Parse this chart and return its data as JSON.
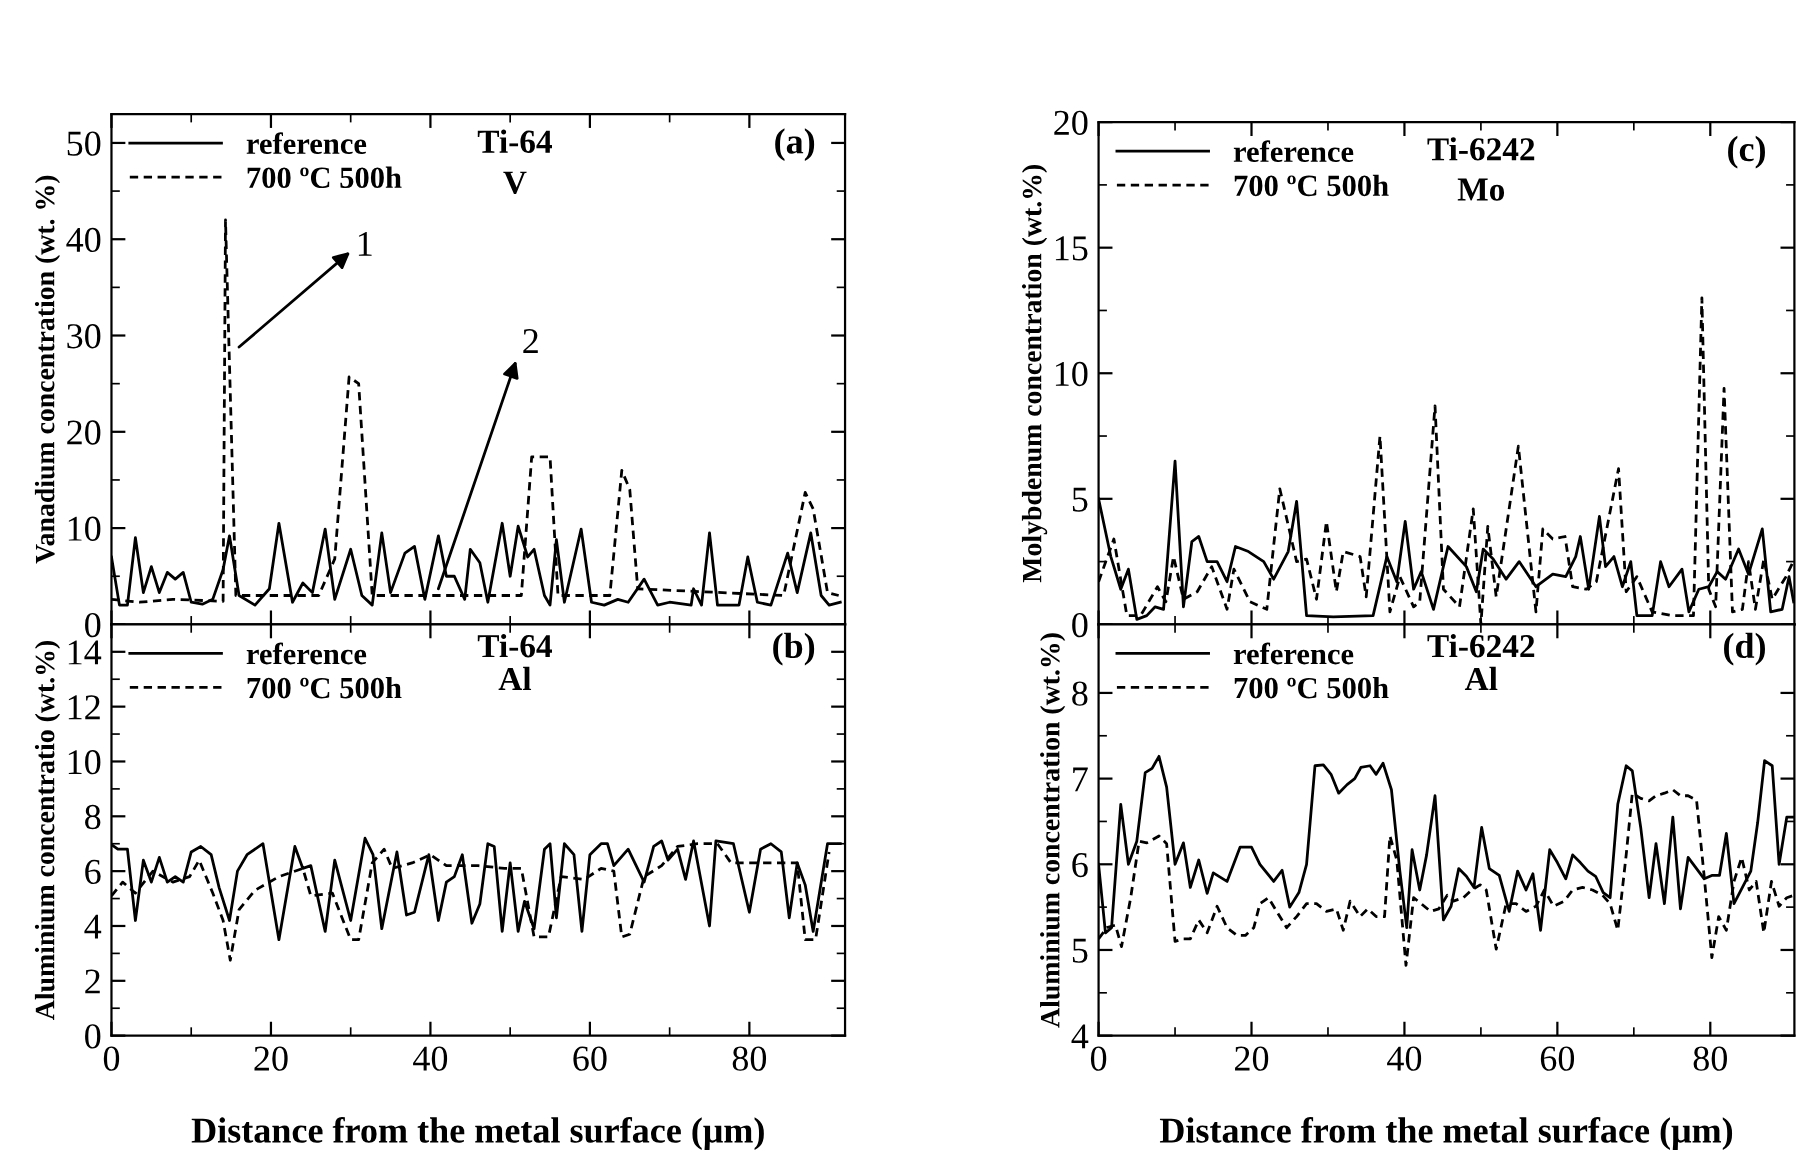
{
  "chart_data": [
    {
      "type": "line",
      "ylabel": "Vanadium concentration (wt. %)",
      "xlim": [
        0,
        92
      ],
      "ylim": [
        0,
        53
      ],
      "xticks": [
        0,
        20,
        40,
        60,
        80
      ],
      "yticks": [
        0,
        10,
        20,
        30,
        40,
        50
      ],
      "tick_labels": "y",
      "legend": "top left",
      "grid": false,
      "annotations": [
        "Ti-64",
        "V",
        "(a)",
        {
          "text": "1",
          "x": 16,
          "y": 28.8
        },
        {
          "text": "2",
          "x": 41,
          "y": 3.7
        }
      ],
      "series": [
        {
          "name": "reference",
          "color": "#000000",
          "line_style": "solid",
          "x": [
            0,
            1,
            2,
            3,
            4,
            5,
            6,
            7,
            8,
            9,
            10,
            11.4,
            12.7,
            14,
            14.8,
            16,
            18,
            19.8,
            21,
            22.7,
            24,
            25.2,
            26.8,
            28,
            30,
            31.4,
            32.7,
            33.9,
            35,
            36.8,
            38,
            39.3,
            41,
            42,
            43,
            44.3,
            45,
            46.2,
            47.2,
            49,
            50,
            51,
            52.2,
            53,
            54.3,
            55,
            55.8,
            56.8,
            58.9,
            60.2,
            61.8,
            63.5,
            64.8,
            66.8,
            68.5,
            70,
            72.7,
            73,
            74,
            75,
            76,
            78.7,
            79.8,
            81,
            82.7,
            84.8,
            86,
            87.7,
            89,
            90,
            91.4
          ],
          "values": [
            7,
            2,
            2,
            9,
            3.3,
            6,
            3.3,
            5.4,
            4.7,
            5.4,
            2.3,
            2.1,
            2.6,
            5.7,
            9.2,
            3,
            2,
            3.7,
            10.5,
            2.3,
            4.3,
            3.3,
            9.9,
            2.6,
            7.8,
            3,
            2,
            9.5,
            3.3,
            7.4,
            8.1,
            2.6,
            9.2,
            5,
            5,
            2.6,
            7.8,
            6.4,
            2.3,
            10.5,
            5,
            10.2,
            7,
            7.8,
            3,
            2,
            8.8,
            2.3,
            9.9,
            2.3,
            2,
            2.6,
            2.3,
            4.7,
            2,
            2.3,
            2,
            3.7,
            2,
            9.5,
            2,
            2,
            7,
            2.3,
            2,
            7.4,
            3.3,
            9.5,
            3,
            2,
            2.3
          ]
        },
        {
          "name": "700 ºC 500h",
          "color": "#000000",
          "line_style": "dashed",
          "x": [
            0,
            3.5,
            7.7,
            14,
            14.3,
            15.6,
            26,
            28,
            29.8,
            31,
            32.7,
            51.4,
            52.7,
            55,
            56,
            62.5,
            64,
            65,
            66,
            84.3,
            87,
            88,
            89.8,
            91.2
          ],
          "values": [
            2.6,
            2.3,
            2.6,
            2.4,
            42,
            3,
            3,
            6.8,
            25.7,
            25,
            3,
            3,
            17.4,
            17.4,
            3,
            3,
            16,
            14,
            3.7,
            3,
            13.7,
            12,
            3.3,
            3
          ]
        }
      ]
    },
    {
      "type": "line",
      "ylabel": "Molybdenum concentration (wt.%)",
      "xlim": [
        0,
        91
      ],
      "ylim": [
        0,
        20
      ],
      "xticks": [
        0,
        20,
        40,
        60,
        80
      ],
      "yticks": [
        0,
        5,
        10,
        15,
        20
      ],
      "tick_labels": "y",
      "legend": "top left",
      "grid": false,
      "annotations": [
        "Ti-6242",
        "Mo",
        "(c)"
      ],
      "series": [
        {
          "name": "reference",
          "color": "#000000",
          "line_style": "solid",
          "x": [
            0,
            1.6,
            2.9,
            3.9,
            5,
            6.3,
            7.4,
            8.5,
            10,
            11.1,
            12.2,
            13.1,
            14.2,
            15.5,
            16.8,
            17.9,
            19.6,
            21.6,
            22.9,
            24.8,
            25.9,
            27.2,
            30.7,
            35.9,
            37.7,
            39,
            40.1,
            41.2,
            42.2,
            43.8,
            45.7,
            48.1,
            49.4,
            50.3,
            51.6,
            53.3,
            55,
            57.2,
            59.4,
            61.1,
            62.4,
            63,
            64.1,
            65.5,
            66.3,
            67.4,
            68.5,
            69.6,
            70.4,
            72.4,
            73.5,
            74.6,
            76.3,
            77.2,
            78.5,
            79.8,
            80.9,
            82,
            83.7,
            85,
            86.8,
            87.9,
            89.4,
            90.3,
            90.9
          ],
          "values": [
            5,
            2.7,
            1.4,
            2.2,
            0.2,
            0.35,
            0.7,
            0.6,
            6.5,
            0.7,
            3.3,
            3.5,
            2.5,
            2.5,
            1.7,
            3.1,
            2.9,
            2.5,
            1.8,
            2.9,
            4.9,
            0.35,
            0.3,
            0.35,
            2.7,
            1.7,
            4.1,
            1.4,
            2.1,
            0.6,
            3.1,
            2.3,
            1.3,
            3,
            2.6,
            1.8,
            2.5,
            1.5,
            2,
            1.9,
            2.7,
            3.5,
            1.4,
            4.3,
            2.3,
            2.7,
            1.5,
            2.5,
            0.35,
            0.35,
            2.5,
            1.5,
            2.2,
            0.5,
            1.4,
            1.5,
            2.1,
            1.8,
            3,
            2,
            3.8,
            0.5,
            0.6,
            1.9,
            0.9
          ]
        },
        {
          "name": "700 ºC 500h",
          "color": "#000000",
          "line_style": "dashed",
          "x": [
            0,
            2,
            3.7,
            5.5,
            7.7,
            8.8,
            9.8,
            11.1,
            12.9,
            14.8,
            16.8,
            17.7,
            19.8,
            22,
            23.7,
            25.9,
            27.2,
            28.5,
            29.8,
            31.1,
            32,
            34.2,
            35,
            36.8,
            38.1,
            39.4,
            41.2,
            42,
            44,
            45.1,
            47.2,
            49,
            50,
            50.9,
            52,
            54.9,
            57.2,
            58.1,
            59.4,
            61,
            62,
            63.8,
            65.1,
            68,
            69,
            70.4,
            72.4,
            75,
            77.8,
            78.9,
            79.8,
            80.7,
            81.8,
            82.9,
            84.2,
            85,
            85.9,
            87,
            88.1,
            89.9,
            91
          ],
          "values": [
            1.7,
            3.4,
            0.35,
            0.35,
            1.5,
            0.9,
            2.7,
            1,
            1.3,
            2.3,
            0.6,
            2.2,
            0.9,
            0.6,
            5.4,
            2.5,
            2.6,
            1,
            4.1,
            1.3,
            2.9,
            2.7,
            1.1,
            7.5,
            0.5,
            1.9,
            0.7,
            0.9,
            8.7,
            1.4,
            0.7,
            4.6,
            0,
            3.9,
            1.1,
            7.1,
            0.5,
            3.8,
            3.4,
            3.5,
            1.5,
            1.4,
            1.7,
            6.2,
            1.3,
            1.9,
            0.5,
            0.35,
            0.35,
            13,
            1.4,
            0.7,
            9.4,
            0.5,
            0.6,
            2.5,
            0.6,
            2.6,
            1,
            1.9,
            2.6
          ]
        }
      ]
    },
    {
      "type": "line",
      "ylabel": "Aluminium concentratio (wt.%)",
      "xlabel": "Distance from the metal surface (μm)",
      "xlim": [
        0,
        92
      ],
      "ylim": [
        0,
        15
      ],
      "xticks": [
        0,
        20,
        40,
        60,
        80
      ],
      "yticks": [
        0,
        2,
        4,
        6,
        8,
        10,
        12,
        14
      ],
      "legend": "top left",
      "grid": false,
      "annotations": [
        "Ti-64",
        "Al",
        "(b)"
      ],
      "series": [
        {
          "name": "reference",
          "color": "#000000",
          "line_style": "solid",
          "x": [
            0,
            0.8,
            2,
            3,
            4,
            5,
            6,
            7,
            8,
            9,
            10,
            11.2,
            12.5,
            13.5,
            14.8,
            15.8,
            17,
            19,
            21,
            23,
            24,
            25,
            26.8,
            28,
            30,
            31.8,
            32.8,
            33.9,
            35.8,
            37,
            38,
            39.8,
            41,
            42,
            43,
            44,
            45.2,
            46.2,
            47.2,
            48,
            49,
            50,
            51,
            51.8,
            53,
            54.3,
            55,
            55.8,
            56.8,
            58,
            59,
            60,
            61.4,
            62.2,
            63,
            64.8,
            66.8,
            68,
            69,
            69.8,
            71,
            72,
            73,
            75,
            75.8,
            78,
            80,
            81.4,
            82.7,
            84,
            85,
            86,
            87,
            88,
            89.8,
            91.4
          ],
          "values": [
            6.97,
            6.8,
            6.8,
            4.2,
            6.4,
            5.6,
            6.5,
            5.6,
            5.8,
            5.6,
            6.7,
            6.9,
            6.6,
            5.4,
            4.2,
            6,
            6.6,
            7,
            3.5,
            6.9,
            6.1,
            6.2,
            3.8,
            6.4,
            4.2,
            7.2,
            6.6,
            3.9,
            6.7,
            4.4,
            4.5,
            6.6,
            4.2,
            5.6,
            5.8,
            6.6,
            4.1,
            4.8,
            7,
            6.9,
            3.8,
            6.3,
            3.8,
            4.9,
            3.9,
            6.8,
            7,
            4.3,
            7,
            6.6,
            3.8,
            6.6,
            7,
            7,
            6.2,
            6.8,
            5.6,
            6.9,
            7.1,
            6.4,
            6.8,
            5.7,
            7.1,
            4,
            7.1,
            7,
            4.5,
            6.8,
            7,
            6.7,
            4.3,
            6.3,
            5.5,
            3.8,
            7,
            7
          ]
        },
        {
          "name": "700 ºC 500h",
          "color": "#000000",
          "line_style": "dashed",
          "x": [
            0,
            1.4,
            3,
            5.2,
            7.7,
            9.8,
            11,
            12.7,
            14,
            14.9,
            16,
            18,
            21,
            24,
            25,
            27.7,
            30,
            31,
            32.7,
            34.2,
            35.2,
            37.7,
            40,
            42,
            46,
            49.3,
            51.4,
            53,
            54.8,
            56.4,
            59.3,
            61.4,
            63,
            64,
            65,
            66.8,
            69,
            71,
            73.5,
            76,
            77.7,
            80,
            82.7,
            86,
            87,
            88.3,
            90
          ],
          "values": [
            5.1,
            5.6,
            5.2,
            6,
            5.6,
            5.8,
            6.4,
            5.2,
            4.2,
            2.75,
            4.6,
            5.3,
            5.8,
            6.1,
            5.1,
            5.2,
            3.5,
            3.5,
            6.3,
            6.8,
            6.1,
            6.3,
            6.6,
            6.2,
            6.2,
            6.1,
            6.1,
            3.6,
            3.6,
            5.8,
            5.7,
            6.1,
            6,
            3.6,
            3.7,
            5.8,
            6.2,
            6.9,
            7,
            7,
            6.3,
            6.3,
            6.3,
            6.3,
            3.5,
            3.5,
            6.7
          ]
        }
      ]
    },
    {
      "type": "line",
      "ylabel": "Aluminium concentration (wt.%)",
      "xlabel": "Distance from the metal surface (μm)",
      "xlim": [
        0,
        91
      ],
      "ylim": [
        4,
        8.8
      ],
      "xticks": [
        0,
        20,
        40,
        60,
        80
      ],
      "yticks": [
        4,
        5,
        6,
        7,
        8
      ],
      "legend": "top left",
      "grid": false,
      "annotations": [
        "Ti-6242",
        "Al",
        "(d)"
      ],
      "series": [
        {
          "name": "reference",
          "color": "#000000",
          "line_style": "solid",
          "x": [
            0,
            0.9,
            1.7,
            2.9,
            3.9,
            5,
            6.1,
            7,
            7.9,
            8.9,
            10,
            11.1,
            12,
            13.1,
            14.2,
            15,
            16.8,
            18.5,
            20,
            21.1,
            22.9,
            24,
            25,
            26.2,
            27.2,
            28.3,
            29.4,
            30.4,
            31.4,
            32.5,
            33.5,
            34.3,
            35.5,
            36.3,
            37.2,
            38.3,
            39.4,
            40.3,
            41,
            42,
            42.9,
            44,
            45.1,
            46.1,
            47.1,
            48.1,
            49.1,
            50.1,
            51.1,
            52.4,
            53.7,
            54.8,
            55.9,
            56.8,
            57.8,
            59,
            60,
            61.1,
            62,
            63,
            64,
            65,
            66,
            66.9,
            67.9,
            69,
            69.8,
            70.9,
            72,
            72.9,
            74,
            75.1,
            76.1,
            77.1,
            78.2,
            79.2,
            80.2,
            81.2,
            82.1,
            83.1,
            84.2,
            85.3,
            86.2,
            87.1,
            88.1,
            89,
            90,
            91
          ],
          "values": [
            6,
            5.2,
            5.26,
            6.7,
            6,
            6.27,
            7.07,
            7.12,
            7.26,
            6.9,
            6,
            6.25,
            5.73,
            6.05,
            5.66,
            5.9,
            5.8,
            6.2,
            6.2,
            6,
            5.8,
            5.93,
            5.5,
            5.67,
            6,
            7.15,
            7.16,
            7.05,
            6.83,
            6.93,
            7,
            7.13,
            7.15,
            7.05,
            7.18,
            6.87,
            5.92,
            5.26,
            6.17,
            5.7,
            6.11,
            6.8,
            5.35,
            5.51,
            5.95,
            5.86,
            5.73,
            6.43,
            5.95,
            5.87,
            5.45,
            5.92,
            5.7,
            5.89,
            5.23,
            6.17,
            6.02,
            5.83,
            6.11,
            6.02,
            5.92,
            5.86,
            5.67,
            5.61,
            6.7,
            7.15,
            7.09,
            6.43,
            5.61,
            6.24,
            5.54,
            6.55,
            5.48,
            6.08,
            5.95,
            5.83,
            5.87,
            5.87,
            6.36,
            5.54,
            5.73,
            5.92,
            6.49,
            7.21,
            7.15,
            6,
            6.55,
            6.55
          ]
        },
        {
          "name": "700 ºC 500h",
          "color": "#000000",
          "line_style": "dashed",
          "x": [
            0,
            1.1,
            2.2,
            3,
            4.2,
            5.3,
            6.3,
            7.9,
            8.9,
            10,
            11.1,
            12,
            13.1,
            14.2,
            15.5,
            16.8,
            18.1,
            19.2,
            20.3,
            21.1,
            22.2,
            23.3,
            24.6,
            25.9,
            27.2,
            28.5,
            29.8,
            31.1,
            32,
            32.9,
            34.2,
            35.2,
            36.3,
            37.4,
            38.1,
            39,
            40.2,
            41.2,
            42.2,
            43.4,
            44.5,
            45.6,
            46.4,
            47.7,
            48.8,
            49.9,
            50.7,
            52,
            53.3,
            54.6,
            55.9,
            57.2,
            58.3,
            59.5,
            60.9,
            62,
            63.3,
            64.6,
            65.9,
            66.9,
            67.9,
            69,
            69.8,
            70.9,
            72,
            72.9,
            74,
            75.1,
            76.1,
            77.1,
            78.2,
            79.2,
            80.2,
            81.1,
            82.1,
            83.1,
            84.1,
            85.1,
            86,
            87,
            88,
            89,
            90,
            91
          ],
          "values": [
            5.13,
            5.26,
            5.29,
            5.04,
            5.61,
            6.27,
            6.25,
            6.33,
            6.24,
            5.1,
            5.13,
            5.13,
            5.35,
            5.2,
            5.51,
            5.26,
            5.17,
            5.17,
            5.26,
            5.54,
            5.61,
            5.45,
            5.26,
            5.39,
            5.54,
            5.54,
            5.45,
            5.48,
            5.23,
            5.57,
            5.39,
            5.48,
            5.39,
            5.39,
            6.33,
            6.05,
            4.82,
            5.61,
            5.54,
            5.45,
            5.48,
            5.64,
            5.57,
            5.61,
            5.7,
            5.76,
            5.7,
            5.01,
            5.54,
            5.54,
            5.45,
            5.51,
            5.7,
            5.51,
            5.57,
            5.7,
            5.73,
            5.7,
            5.64,
            5.54,
            5.23,
            6.11,
            6.83,
            6.77,
            6.74,
            6.8,
            6.83,
            6.87,
            6.8,
            6.8,
            6.75,
            5.86,
            4.91,
            5.39,
            5.23,
            5.8,
            6.08,
            5.7,
            5.8,
            5.2,
            5.8,
            5.51,
            5.61,
            5.64
          ]
        }
      ]
    }
  ]
}
